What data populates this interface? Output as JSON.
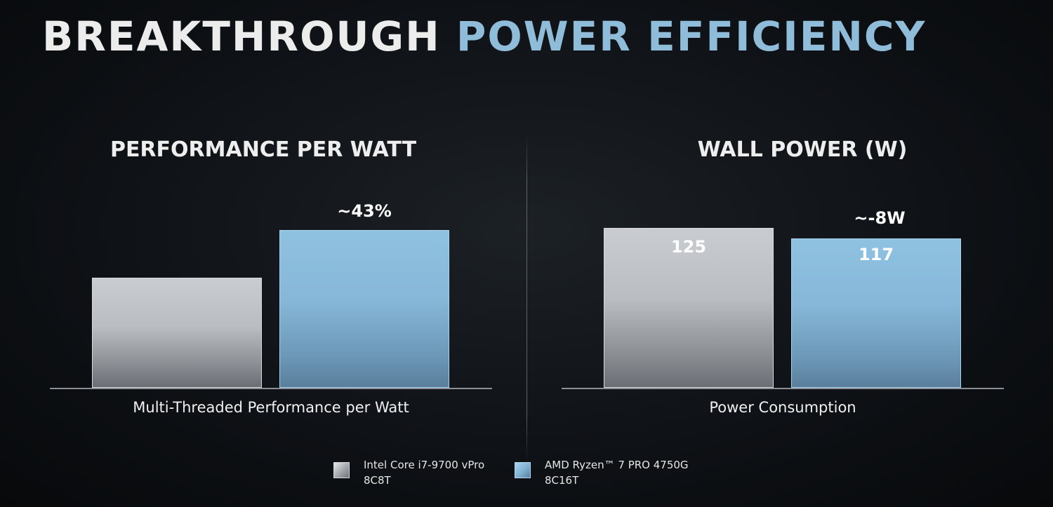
{
  "title": {
    "part1": "BREAKTHROUGH",
    "part2": "POWER EFFICIENCY"
  },
  "colors": {
    "intel": "#b9bcc0",
    "amd": "#86b7d8",
    "title_accent": "#8fbcd8"
  },
  "legend": [
    {
      "line1": "Intel Core i7-9700 vPro",
      "line2": "8C8T",
      "color": "gray"
    },
    {
      "line1": "AMD Ryzen™ 7 PRO 4750G",
      "line2": "8C16T",
      "color": "blue"
    }
  ],
  "chart_data": [
    {
      "type": "bar",
      "title": "PERFORMANCE PER WATT",
      "categories": [
        "Multi-Threaded Performance per Watt"
      ],
      "series": [
        {
          "name": "Intel Core i7-9700 vPro 8C8T",
          "values": [
            1.0
          ]
        },
        {
          "name": "AMD Ryzen™ 7 PRO 4750G 8C16T",
          "values": [
            1.43
          ]
        }
      ],
      "annotation": "~43%",
      "ylim": [
        0,
        1.45
      ],
      "xlabel": "Multi-Threaded Performance per Watt",
      "ylabel": ""
    },
    {
      "type": "bar",
      "title": "WALL POWER (W)",
      "categories": [
        "Power Consumption"
      ],
      "series": [
        {
          "name": "Intel Core i7-9700 vPro 8C8T",
          "values": [
            125
          ],
          "label": "125"
        },
        {
          "name": "AMD Ryzen™ 7 PRO 4750G 8C16T",
          "values": [
            117
          ],
          "label": "117"
        }
      ],
      "annotation": "~-8W",
      "ylim": [
        0,
        125
      ],
      "xlabel": "Power Consumption",
      "ylabel": ""
    }
  ]
}
